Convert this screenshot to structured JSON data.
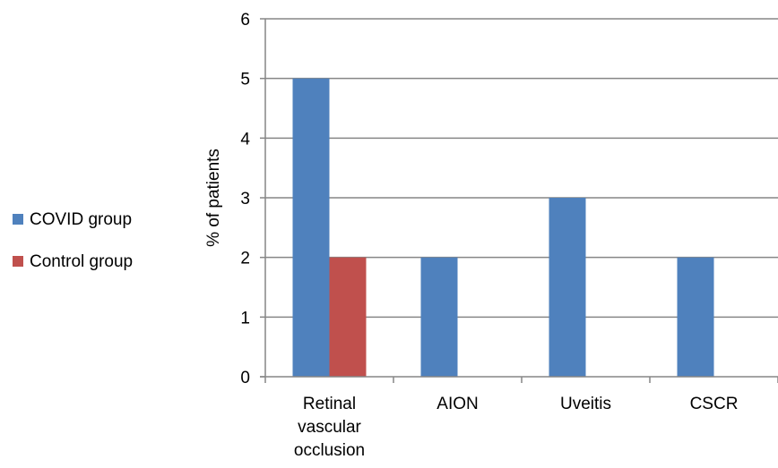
{
  "chart_data": {
    "type": "bar",
    "categories": [
      [
        "Retinal",
        "vascular",
        "occlusion"
      ],
      [
        "AION"
      ],
      [
        "Uveitis"
      ],
      [
        "CSCR"
      ]
    ],
    "series": [
      {
        "name": "COVID group",
        "values": [
          5,
          2,
          3,
          2
        ],
        "color": "#4F81BD"
      },
      {
        "name": "Control group",
        "values": [
          2,
          0,
          0,
          0
        ],
        "color": "#C0504D"
      }
    ],
    "ylabel": "% of patients",
    "xlabel": "",
    "title": "",
    "ylim": [
      0,
      6
    ],
    "yticks": [
      0,
      1,
      2,
      3,
      4,
      5,
      6
    ],
    "grid": true,
    "legend_position": "left",
    "gridline_color": "#868686",
    "axis_color": "#868686"
  }
}
